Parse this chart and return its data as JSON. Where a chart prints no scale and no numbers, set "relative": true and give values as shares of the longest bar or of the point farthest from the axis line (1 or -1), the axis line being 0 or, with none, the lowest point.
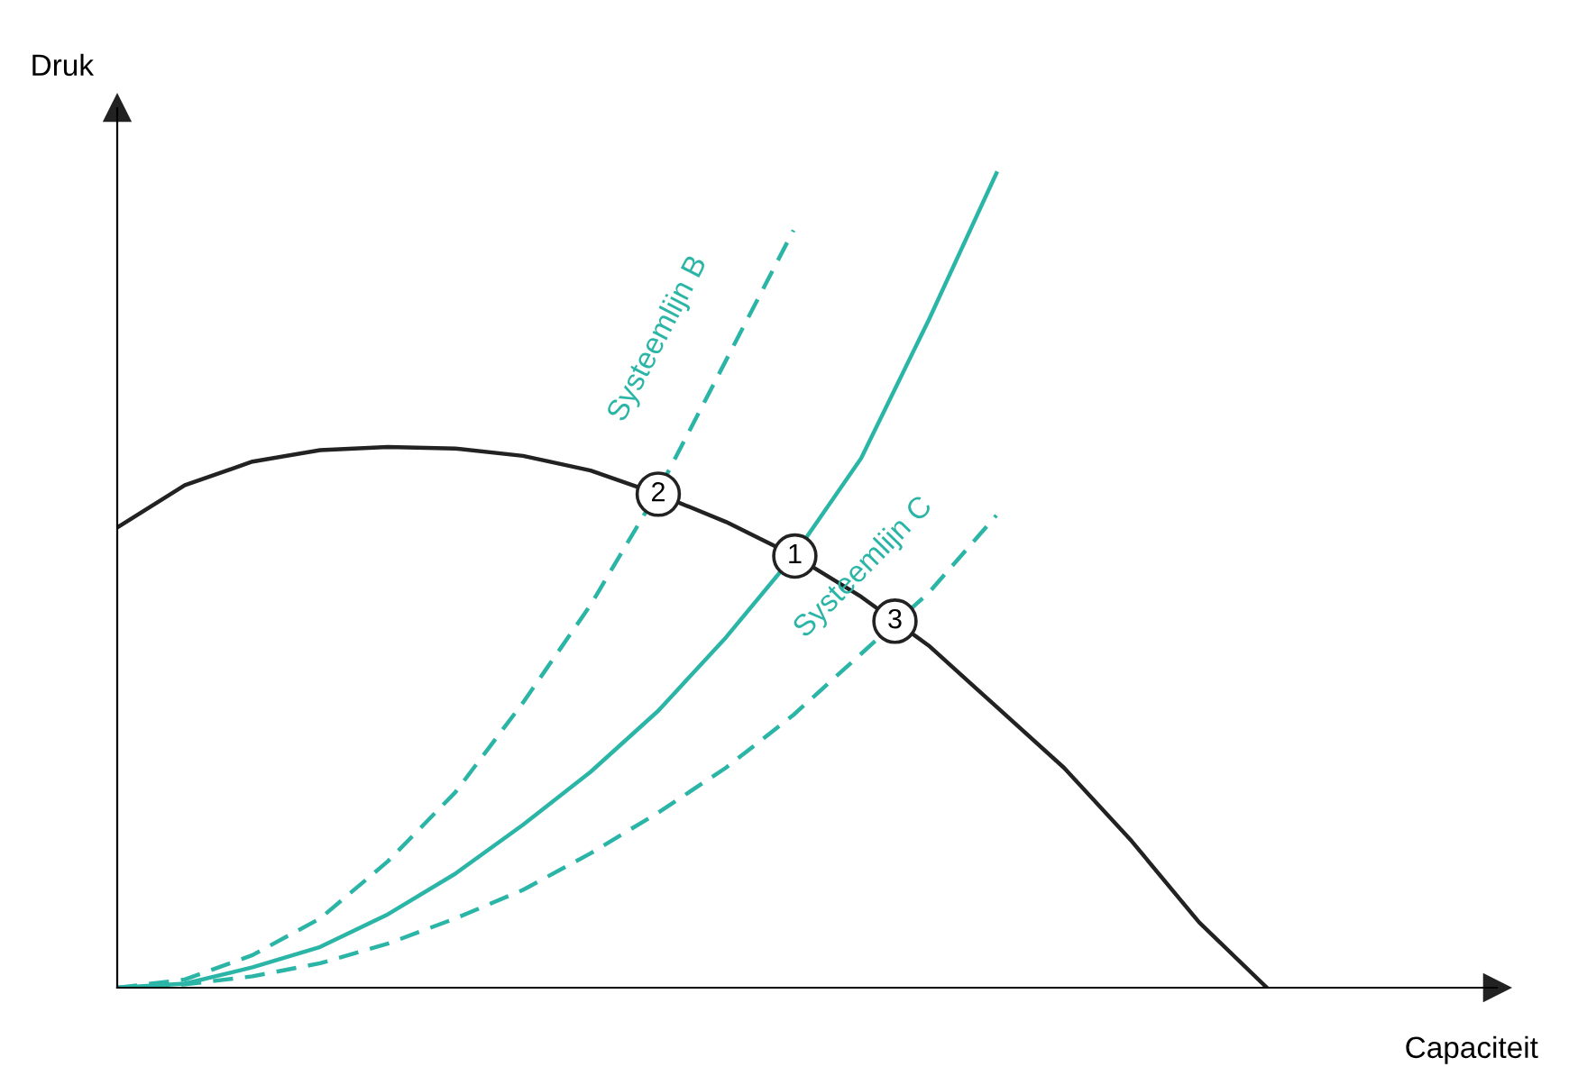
{
  "chart_data": {
    "type": "line",
    "relative": true,
    "xlabel": "Capaciteit",
    "ylabel": "Druk",
    "categories": [
      null,
      null,
      null,
      null,
      null,
      null,
      null,
      null,
      null,
      null,
      null,
      null,
      null,
      null,
      null,
      null,
      null,
      null
    ],
    "series": [
      {
        "color": "#222222",
        "line_style": "solid",
        "values": [
          0.565,
          0.617,
          0.646,
          0.66,
          0.664,
          0.662,
          0.653,
          0.635,
          0.606,
          0.572,
          0.531,
          0.48,
          0.42,
          0.345,
          0.27,
          0.18,
          0.08,
          0.0
        ]
      },
      {
        "name": "Systeemlijn B",
        "color": "#2bb5a6",
        "line_style": "dashed",
        "values": [
          0,
          0.01,
          0.04,
          0.085,
          0.155,
          0.24,
          0.35,
          0.47,
          0.61,
          0.77,
          0.93,
          null,
          null,
          null,
          null,
          null,
          null,
          null
        ]
      },
      {
        "color": "#2bb5a6",
        "line_style": "solid",
        "values": [
          0,
          0.005,
          0.025,
          0.05,
          0.09,
          0.14,
          0.2,
          0.265,
          0.34,
          0.43,
          0.53,
          0.65,
          0.82,
          1.0,
          null,
          null,
          null,
          null
        ]
      },
      {
        "name": "Systeemlijn C",
        "color": "#2bb5a6",
        "line_style": "dashed",
        "values": [
          0,
          0.004,
          0.014,
          0.03,
          0.054,
          0.085,
          0.12,
          0.165,
          0.215,
          0.27,
          0.335,
          0.41,
          0.485,
          0.58,
          null,
          null,
          null,
          null
        ]
      }
    ],
    "annotations": [
      {
        "text": "2",
        "y": 0.606
      },
      {
        "text": "1",
        "y": 0.53
      },
      {
        "text": "3",
        "y": 0.45
      }
    ]
  }
}
